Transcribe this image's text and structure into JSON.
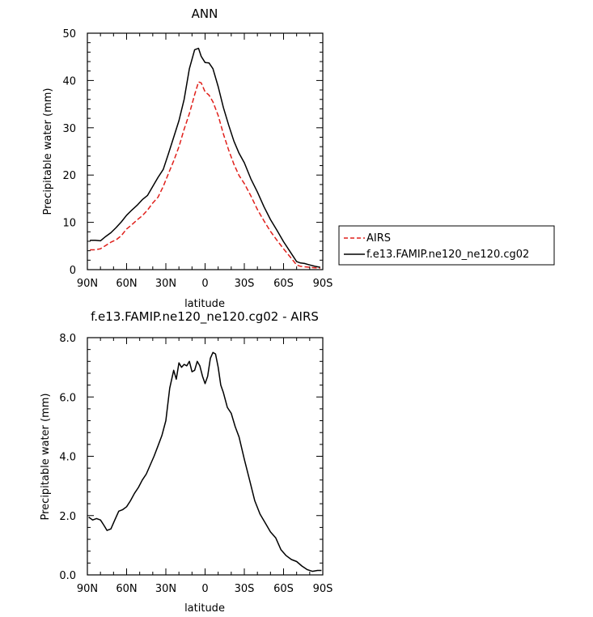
{
  "chart_data": [
    {
      "type": "line",
      "title": "ANN",
      "xlabel": "latitude",
      "ylabel": "Precipitable water (mm)",
      "xlim": [
        90,
        -90
      ],
      "ylim": [
        0,
        50
      ],
      "x_ticks": [
        90,
        60,
        30,
        0,
        -30,
        -60,
        -90
      ],
      "x_tick_labels": [
        "90N",
        "60N",
        "30N",
        "0",
        "30S",
        "60S",
        "90S"
      ],
      "y_ticks": [
        0,
        10,
        20,
        30,
        40,
        50
      ],
      "y_tick_labels": [
        "0",
        "10",
        "20",
        "30",
        "40",
        "50"
      ],
      "legend": [
        "AIRS",
        "f.e13.FAMIP.ne120_ne120.cg02"
      ],
      "series": [
        {
          "name": "AIRS",
          "color": "#e0201b",
          "dash": true,
          "x": [
            88,
            84,
            80,
            76,
            72,
            68,
            64,
            60,
            56,
            52,
            48,
            44,
            40,
            36,
            32,
            28,
            24,
            20,
            16,
            12,
            8,
            5,
            3,
            0,
            -3,
            -6,
            -10,
            -14,
            -18,
            -22,
            -26,
            -30,
            -35,
            -40,
            -45,
            -50,
            -55,
            -60,
            -65,
            -70,
            -73,
            -76,
            -80,
            -84,
            -88
          ],
          "values": [
            4.2,
            4.2,
            4.4,
            5.1,
            5.8,
            6.3,
            7.2,
            8.6,
            9.5,
            10.5,
            11.4,
            12.6,
            14.1,
            15.3,
            17.6,
            20.3,
            23.0,
            26.0,
            29.7,
            33.0,
            37.0,
            39.7,
            39.5,
            37.6,
            36.9,
            35.5,
            32.6,
            28.7,
            25.3,
            22.3,
            19.9,
            18.2,
            15.6,
            12.7,
            10.3,
            8.1,
            6.2,
            4.4,
            2.7,
            1.0,
            0.7,
            0.6,
            0.5,
            0.4,
            0.3
          ]
        },
        {
          "name": "f.e13.FAMIP.ne120_ne120.cg02",
          "color": "#000000",
          "dash": false,
          "x": [
            88,
            84,
            80,
            76,
            72,
            68,
            64,
            60,
            56,
            52,
            48,
            44,
            40,
            36,
            32,
            28,
            24,
            20,
            16,
            12,
            8,
            5,
            3,
            0,
            -3,
            -6,
            -10,
            -14,
            -18,
            -22,
            -26,
            -30,
            -35,
            -40,
            -45,
            -50,
            -55,
            -60,
            -65,
            -70,
            -73,
            -76,
            -80,
            -84,
            -88
          ],
          "values": [
            6.2,
            6.2,
            6.1,
            7.0,
            7.8,
            8.9,
            10.1,
            11.5,
            12.6,
            13.6,
            14.8,
            15.7,
            17.6,
            19.5,
            21.2,
            24.5,
            28.0,
            31.5,
            36.0,
            42.5,
            46.5,
            46.8,
            45.1,
            43.8,
            43.7,
            42.5,
            38.7,
            34.3,
            30.6,
            27.2,
            24.6,
            22.6,
            19.2,
            16.4,
            13.3,
            10.6,
            8.3,
            5.9,
            3.8,
            1.7,
            1.4,
            1.3,
            1.0,
            0.7,
            0.5
          ]
        }
      ]
    },
    {
      "type": "line",
      "title": "f.e13.FAMIP.ne120_ne120.cg02 - AIRS",
      "xlabel": "latitude",
      "ylabel": "Precipitable water (mm)",
      "xlim": [
        90,
        -90
      ],
      "ylim": [
        0,
        8
      ],
      "x_ticks": [
        90,
        60,
        30,
        0,
        -30,
        -60,
        -90
      ],
      "x_tick_labels": [
        "90N",
        "60N",
        "30N",
        "0",
        "30S",
        "60S",
        "90S"
      ],
      "y_ticks": [
        0,
        2,
        4,
        6,
        8
      ],
      "y_tick_labels": [
        "0.0",
        "2.0",
        "4.0",
        "6.0",
        "8.0"
      ],
      "series": [
        {
          "name": "f.e13.FAMIP.ne120_ne120.cg02 - AIRS",
          "color": "#000000",
          "dash": false,
          "x": [
            89,
            86,
            83,
            80,
            77,
            75,
            72,
            69,
            66,
            63,
            60,
            57,
            54,
            51,
            48,
            45,
            42,
            39,
            36,
            33,
            30,
            27,
            24,
            22,
            20,
            18,
            16,
            14,
            12,
            10,
            8,
            6,
            4,
            2,
            0,
            -2,
            -4,
            -6,
            -8,
            -10,
            -12,
            -14,
            -17,
            -20,
            -23,
            -26,
            -30,
            -34,
            -38,
            -42,
            -46,
            -50,
            -54,
            -58,
            -62,
            -66,
            -70,
            -74,
            -78,
            -82,
            -86,
            -89
          ],
          "values": [
            1.95,
            1.85,
            1.9,
            1.85,
            1.65,
            1.5,
            1.55,
            1.85,
            2.15,
            2.2,
            2.3,
            2.5,
            2.75,
            2.95,
            3.2,
            3.4,
            3.7,
            4.0,
            4.35,
            4.7,
            5.2,
            6.3,
            6.9,
            6.6,
            7.15,
            7.0,
            7.1,
            7.05,
            7.2,
            6.85,
            6.9,
            7.2,
            7.05,
            6.7,
            6.45,
            6.7,
            7.3,
            7.5,
            7.45,
            7.0,
            6.4,
            6.15,
            5.65,
            5.45,
            5.0,
            4.65,
            3.9,
            3.2,
            2.5,
            2.05,
            1.75,
            1.45,
            1.25,
            0.85,
            0.65,
            0.52,
            0.45,
            0.3,
            0.18,
            0.12,
            0.15,
            0.15
          ]
        }
      ]
    }
  ]
}
